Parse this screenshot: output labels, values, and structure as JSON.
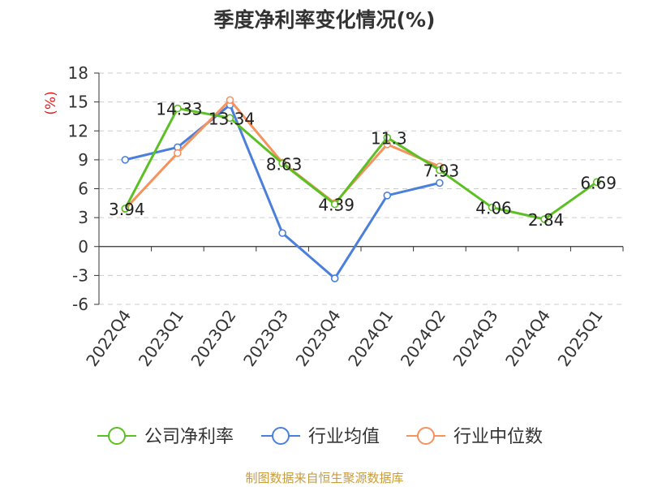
{
  "chart_data": {
    "type": "line",
    "title": "季度净利率变化情况(%)",
    "unit_label": "(%)",
    "categories": [
      "2022Q4",
      "2023Q1",
      "2023Q2",
      "2023Q3",
      "2023Q4",
      "2024Q1",
      "2024Q2",
      "2024Q3",
      "2024Q4",
      "2025Q1"
    ],
    "ylim": [
      -6,
      18
    ],
    "yticks": [
      "18",
      "15",
      "12",
      "9",
      "6",
      "3",
      "0",
      "-3",
      "-6"
    ],
    "grid": true,
    "legend_position": "bottom",
    "series": [
      {
        "name": "公司净利率",
        "color": "#5cc024",
        "values": [
          3.94,
          14.33,
          13.34,
          8.63,
          4.39,
          11.3,
          7.93,
          4.06,
          2.84,
          6.69
        ],
        "labels": [
          "3.94",
          "14.33",
          "13.34",
          "8.63",
          "4.39",
          "11.3",
          "7.93",
          "4.06",
          "2.84",
          "6.69"
        ]
      },
      {
        "name": "行业均值",
        "color": "#4a7fdc",
        "values": [
          9.0,
          10.3,
          14.7,
          1.4,
          -3.3,
          5.3,
          6.6,
          null,
          null,
          null
        ]
      },
      {
        "name": "行业中位数",
        "color": "#f5925d",
        "values": [
          3.9,
          9.7,
          15.2,
          8.7,
          4.5,
          10.6,
          8.3,
          null,
          null,
          null
        ]
      }
    ]
  },
  "footer": {
    "source": "制图数据来自恒生聚源数据库"
  }
}
